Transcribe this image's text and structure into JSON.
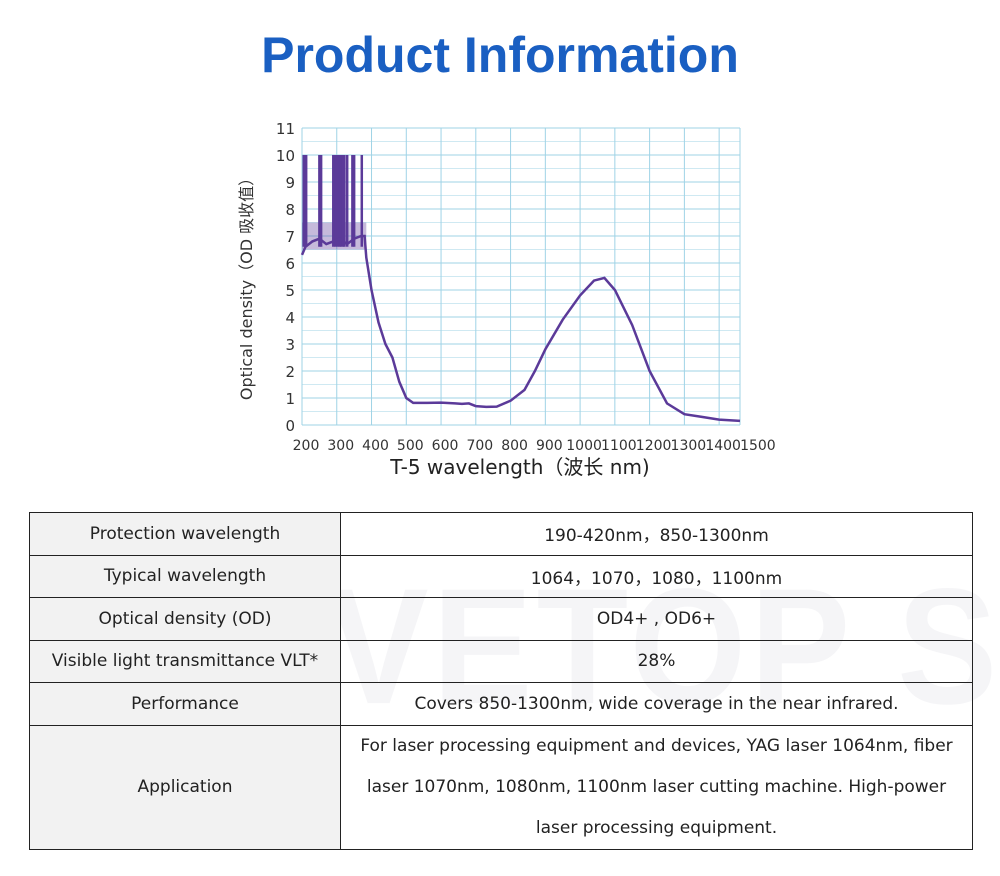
{
  "title": "Product Information",
  "watermark": "WAVETOP SIGN",
  "chart_data": {
    "type": "line",
    "title": "",
    "xlabel": "T-5 wavelength（波长 nm)",
    "ylabel": "Optical density（OD 吸收值）",
    "xlim": [
      200,
      1460
    ],
    "ylim": [
      0,
      11
    ],
    "xticks": [
      200,
      300,
      400,
      500,
      600,
      700,
      800,
      900,
      1000,
      1100,
      1200,
      1300,
      1400,
      1500
    ],
    "yticks": [
      0,
      1,
      2,
      3,
      4,
      5,
      6,
      7,
      8,
      9,
      10,
      11
    ],
    "grid": true,
    "line_color": "#5b3a99",
    "series": [
      {
        "name": "OD",
        "x": [
          200,
          210,
          230,
          250,
          270,
          290,
          310,
          330,
          350,
          370,
          380,
          385,
          400,
          420,
          440,
          460,
          480,
          500,
          520,
          560,
          600,
          640,
          660,
          680,
          700,
          730,
          760,
          800,
          840,
          870,
          900,
          950,
          1000,
          1040,
          1070,
          1100,
          1150,
          1200,
          1250,
          1300,
          1350,
          1400,
          1460
        ],
        "y": [
          6.3,
          6.6,
          6.8,
          6.9,
          6.7,
          6.8,
          6.9,
          6.7,
          6.9,
          7.0,
          7.0,
          6.2,
          5.0,
          3.8,
          3.0,
          2.5,
          1.6,
          1.0,
          0.82,
          0.82,
          0.83,
          0.8,
          0.78,
          0.8,
          0.7,
          0.67,
          0.68,
          0.9,
          1.3,
          2.0,
          2.8,
          3.9,
          4.8,
          5.35,
          5.45,
          5.0,
          3.7,
          2.0,
          0.8,
          0.4,
          0.3,
          0.2,
          0.15
        ]
      }
    ],
    "noise_spikes_x": [
      205,
      208,
      212,
      250,
      255,
      290,
      296,
      302,
      308,
      312,
      318,
      322,
      330,
      345,
      350,
      372
    ],
    "noise_spike_top": 10,
    "noise_band": [
      6.5,
      7.5
    ]
  },
  "table": {
    "rows": [
      {
        "label": "Protection wavelength",
        "value": "190-420nm，850-1300nm"
      },
      {
        "label": "Typical wavelength",
        "value": "1064，1070，1080，1100nm"
      },
      {
        "label": "Optical density (OD)",
        "value": "OD4+ , OD6+"
      },
      {
        "label": "Visible light transmittance VLT*",
        "value": "28%"
      },
      {
        "label": "Performance",
        "value": "Covers 850-1300nm, wide coverage in the near infrared."
      },
      {
        "label": "Application",
        "value": "For laser processing equipment and devices, YAG laser 1064nm, fiber laser 1070nm, 1080nm, 1100nm laser cutting machine. High-power laser processing equipment."
      }
    ]
  }
}
